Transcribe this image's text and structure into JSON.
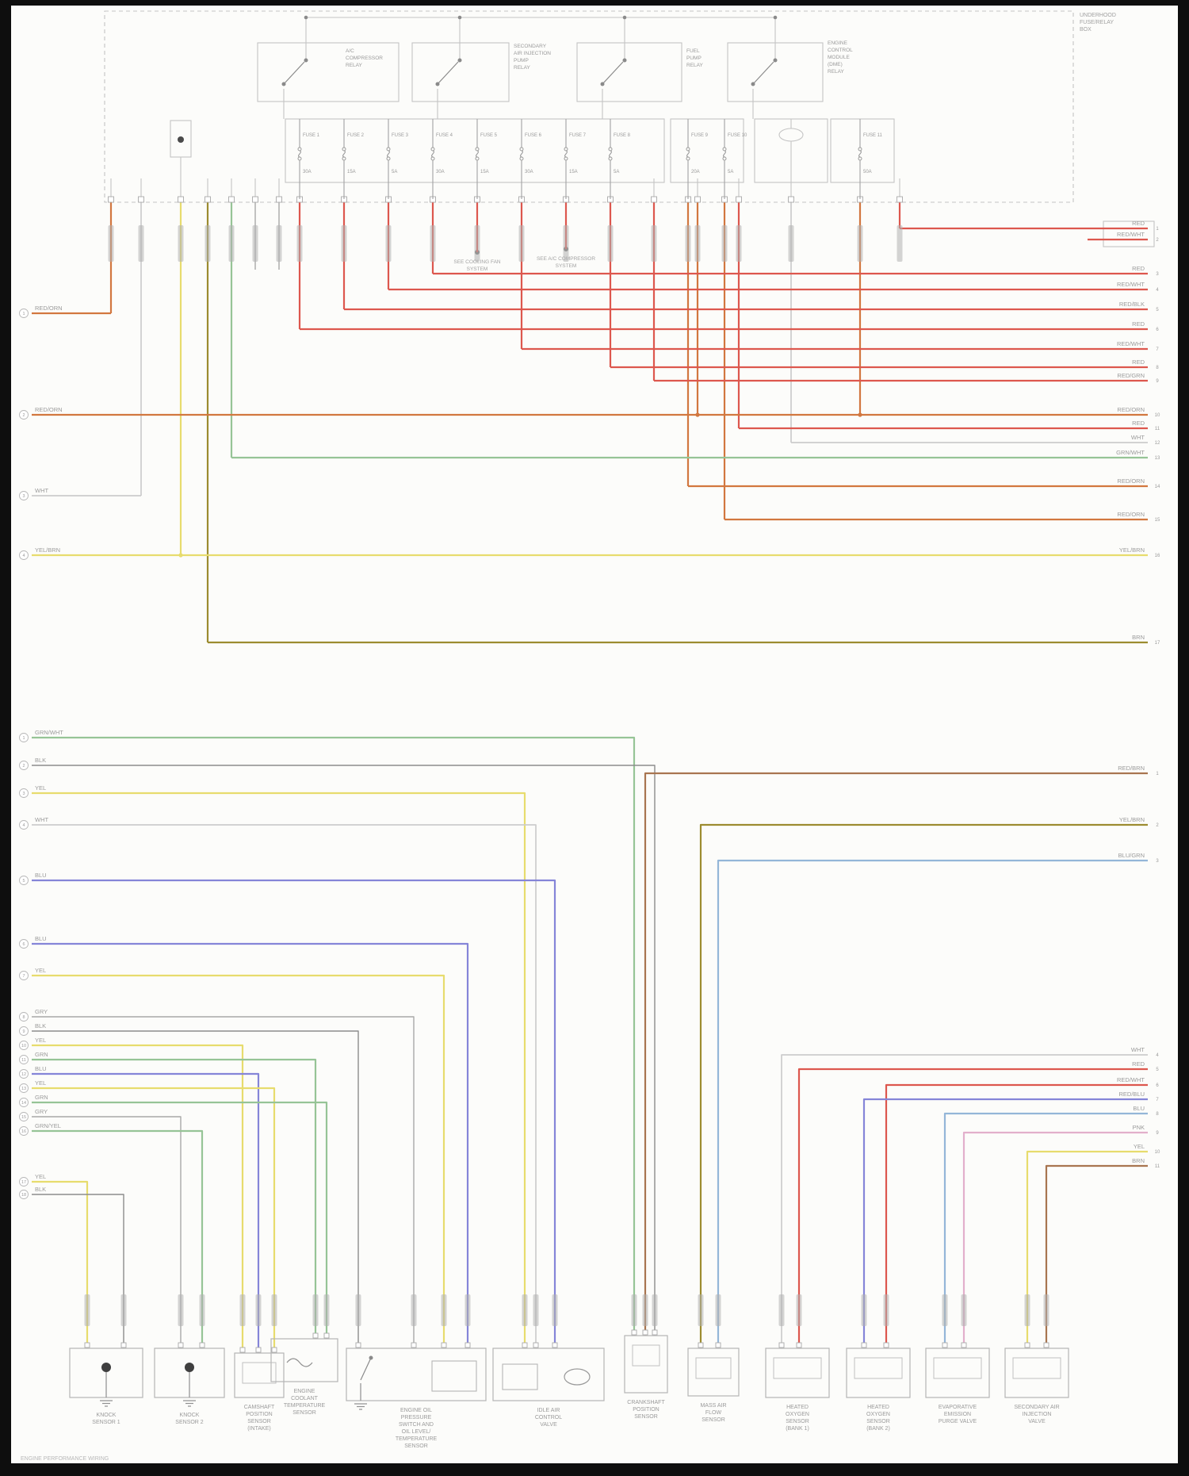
{
  "palette": {
    "RED": "#dd574e",
    "ORN": "#d2773f",
    "YEL": "#e7dc6d",
    "OLV": "#9c8c30",
    "BRN": "#a87550",
    "GRN": "#96c496",
    "BLU": "#8585d8",
    "LTB": "#94b6d8",
    "GRY": "#a8a8a8",
    "BLK": "#8c8c8c",
    "WHT": "#cccccc",
    "PNK": "#e2afcb",
    "line": "#c4c4c4",
    "text": "#9a9a9a"
  },
  "fusebox": {
    "title": [
      "UNDERHOOD",
      "FUSE/RELAY",
      "BOX"
    ],
    "relays": [
      {
        "lines": [
          "A/C",
          "COMPRESSOR",
          "RELAY"
        ]
      },
      {
        "lines": [
          "SECONDARY",
          "AIR INJECTION",
          "PUMP",
          "RELAY"
        ]
      },
      {
        "lines": [
          "FUEL",
          "PUMP",
          "RELAY"
        ]
      },
      {
        "lines": [
          "ENGINE",
          "CONTROL",
          "MODULE",
          "(DME)",
          "RELAY"
        ]
      }
    ],
    "fuses": [
      {
        "name": "FUSE 1",
        "amps": "30A"
      },
      {
        "name": "FUSE 2",
        "amps": "15A"
      },
      {
        "name": "FUSE 3",
        "amps": "5A"
      },
      {
        "name": "FUSE 4",
        "amps": "30A"
      },
      {
        "name": "FUSE 5",
        "amps": "15A"
      },
      {
        "name": "FUSE 6",
        "amps": "30A"
      },
      {
        "name": "FUSE 7",
        "amps": "15A"
      },
      {
        "name": "FUSE 8",
        "amps": "5A"
      },
      {
        "name": "FUSE 9",
        "amps": "20A"
      },
      {
        "name": "FUSE 10",
        "amps": "5A"
      },
      {
        "name": "FUSE 11",
        "amps": "50A"
      }
    ]
  },
  "callouts": [
    {
      "lines": [
        "SEE COOLING FAN",
        "SYSTEM"
      ]
    },
    {
      "lines": [
        "SEE A/C COMPRESSOR",
        "SYSTEM"
      ]
    }
  ],
  "left_top": [
    {
      "pin": "1",
      "code": "RED/ORN",
      "color": "ORN"
    },
    {
      "pin": "2",
      "code": "RED/ORN",
      "color": "ORN"
    },
    {
      "pin": "3",
      "code": "WHT",
      "color": "WHT"
    },
    {
      "pin": "4",
      "code": "YEL/BRN",
      "color": "YEL"
    }
  ],
  "right_top": [
    {
      "pin": "1",
      "code": "RED",
      "color": "RED"
    },
    {
      "pin": "2",
      "code": "RED/WHT",
      "color": "RED"
    },
    {
      "pin": "3",
      "code": "RED",
      "color": "RED"
    },
    {
      "pin": "4",
      "code": "RED/WHT",
      "color": "RED"
    },
    {
      "pin": "5",
      "code": "RED/BLK",
      "color": "RED"
    },
    {
      "pin": "6",
      "code": "RED",
      "color": "RED"
    },
    {
      "pin": "7",
      "code": "RED/WHT",
      "color": "RED"
    },
    {
      "pin": "8",
      "code": "RED",
      "color": "RED"
    },
    {
      "pin": "9",
      "code": "RED/GRN",
      "color": "RED"
    },
    {
      "pin": "10",
      "code": "RED/ORN",
      "color": "ORN"
    },
    {
      "pin": "11",
      "code": "RED",
      "color": "RED"
    },
    {
      "pin": "12",
      "code": "WHT",
      "color": "WHT"
    },
    {
      "pin": "13",
      "code": "GRN/WHT",
      "color": "GRN"
    },
    {
      "pin": "14",
      "code": "RED/ORN",
      "color": "ORN"
    },
    {
      "pin": "15",
      "code": "RED/ORN",
      "color": "ORN"
    },
    {
      "pin": "16",
      "code": "YEL/BRN",
      "color": "YEL"
    },
    {
      "pin": "17",
      "code": "BRN",
      "color": "OLV"
    }
  ],
  "left_mid": [
    {
      "pin": "1",
      "code": "GRN/WHT",
      "color": "GRN"
    },
    {
      "pin": "2",
      "code": "BLK",
      "color": "BLK"
    },
    {
      "pin": "3",
      "code": "YEL",
      "color": "YEL"
    },
    {
      "pin": "4",
      "code": "WHT",
      "color": "WHT"
    },
    {
      "pin": "5",
      "code": "BLU",
      "color": "BLU"
    },
    {
      "pin": "6",
      "code": "BLU",
      "color": "BLU"
    },
    {
      "pin": "7",
      "code": "YEL",
      "color": "YEL"
    },
    {
      "pin": "8",
      "code": "GRY",
      "color": "GRY"
    },
    {
      "pin": "9",
      "code": "BLK",
      "color": "BLK"
    },
    {
      "pin": "10",
      "code": "YEL",
      "color": "YEL"
    },
    {
      "pin": "11",
      "code": "GRN",
      "color": "GRN"
    },
    {
      "pin": "12",
      "code": "BLU",
      "color": "BLU"
    },
    {
      "pin": "13",
      "code": "YEL",
      "color": "YEL"
    },
    {
      "pin": "14",
      "code": "GRN",
      "color": "GRN"
    },
    {
      "pin": "15",
      "code": "GRY",
      "color": "GRY"
    },
    {
      "pin": "16",
      "code": "GRN/YEL",
      "color": "GRN"
    },
    {
      "pin": "17",
      "code": "YEL",
      "color": "YEL"
    },
    {
      "pin": "18",
      "code": "BLK",
      "color": "BLK"
    }
  ],
  "right_mid": [
    {
      "pin": "1",
      "code": "RED/BRN",
      "color": "BRN"
    },
    {
      "pin": "2",
      "code": "YEL/BRN",
      "color": "OLV"
    },
    {
      "pin": "3",
      "code": "BLU/GRN",
      "color": "LTB"
    },
    {
      "pin": "4",
      "code": "WHT",
      "color": "WHT"
    },
    {
      "pin": "5",
      "code": "RED",
      "color": "RED"
    },
    {
      "pin": "6",
      "code": "RED/WHT",
      "color": "RED"
    },
    {
      "pin": "7",
      "code": "RED/BLU",
      "color": "BLU"
    },
    {
      "pin": "8",
      "code": "BLU",
      "color": "LTB"
    },
    {
      "pin": "9",
      "code": "PNK",
      "color": "PNK"
    },
    {
      "pin": "10",
      "code": "YEL",
      "color": "YEL"
    },
    {
      "pin": "11",
      "code": "BRN",
      "color": "BRN"
    }
  ],
  "components": [
    {
      "lines": [
        "KNOCK",
        "SENSOR 1"
      ]
    },
    {
      "lines": [
        "KNOCK",
        "SENSOR 2"
      ]
    },
    {
      "lines": [
        "CAMSHAFT",
        "POSITION",
        "SENSOR",
        "(INTAKE)"
      ]
    },
    {
      "lines": [
        "ENGINE",
        "COOLANT",
        "TEMPERATURE",
        "SENSOR"
      ]
    },
    {
      "lines": [
        "ENGINE OIL",
        "PRESSURE",
        "SWITCH AND",
        "OIL LEVEL/",
        "TEMPERATURE",
        "SENSOR"
      ]
    },
    {
      "lines": [
        "IDLE AIR",
        "CONTROL",
        "VALVE"
      ]
    },
    {
      "lines": [
        "CRANKSHAFT",
        "POSITION",
        "SENSOR"
      ]
    },
    {
      "lines": [
        "MASS AIR",
        "FLOW",
        "SENSOR"
      ]
    },
    {
      "lines": [
        "HEATED",
        "OXYGEN",
        "SENSOR",
        "(BANK 1)"
      ]
    },
    {
      "lines": [
        "HEATED",
        "OXYGEN",
        "SENSOR",
        "(BANK 2)"
      ]
    },
    {
      "lines": [
        "EVAPORATIVE",
        "EMISSION",
        "PURGE VALVE"
      ]
    },
    {
      "lines": [
        "SECONDARY AIR",
        "INJECTION",
        "VALVE"
      ]
    }
  ],
  "watermark": "ENGINE PERFORMANCE WIRING"
}
